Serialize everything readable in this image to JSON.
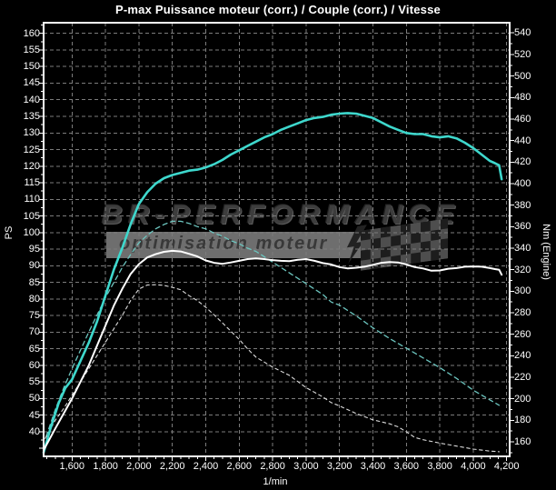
{
  "window": {
    "title": "P-max Puissance moteur (corr.) / Couple (corr.) / Vitesse"
  },
  "watermark": {
    "line1": "BR-PERFORMANCE",
    "line2": "optimisation moteur"
  },
  "colors": {
    "background": "#000000",
    "frame": "#ffffff",
    "grid": "#7c7c7c",
    "text": "#ffffff",
    "accent_cyan": "#3ed8cd",
    "accent_cyan_dim": "#6cc5bf",
    "watermark_text": "#3d3d3d",
    "watermark_bar": "#6e6e6e"
  },
  "chart_data": {
    "type": "line",
    "title": "P-max Puissance moteur (corr.) / Couple (corr.) / Vitesse",
    "grid": {
      "show": true,
      "style": "dashed"
    },
    "legend": "none",
    "x_axis": {
      "label": "1/min",
      "tick_labels": [
        "1,600",
        "1,800",
        "2,000",
        "2,200",
        "2,400",
        "2,600",
        "2,800",
        "3,000",
        "3,200",
        "3,400",
        "3,600",
        "3,800",
        "4,000",
        "4,200"
      ],
      "tick_min": 1600,
      "tick_max": 4200,
      "tick_step": 200,
      "minor_tick_step": 50,
      "axis_min": 1430,
      "axis_max": 4218
    },
    "y_left": {
      "label": "PS",
      "tick_labels": [
        "160",
        "155",
        "150",
        "145",
        "140",
        "135",
        "130",
        "125",
        "120",
        "115",
        "110",
        "105",
        "100",
        "95",
        "90",
        "85",
        "80",
        "75",
        "70",
        "65",
        "60",
        "55",
        "50",
        "45",
        "40"
      ],
      "tick_min": 40,
      "tick_max": 160,
      "tick_step": 5,
      "minor_tick_step": 2.5,
      "axis_min": 32.6,
      "axis_max": 163.2
    },
    "y_right": {
      "label": "Nm (Engine)",
      "tick_labels": [
        "540",
        "520",
        "500",
        "480",
        "460",
        "440",
        "420",
        "400",
        "380",
        "360",
        "340",
        "320",
        "300",
        "280",
        "260",
        "240",
        "220",
        "200",
        "180",
        "160"
      ],
      "tick_min": 160,
      "tick_max": 540,
      "tick_step": 20,
      "minor_tick_step": 10,
      "axis_min": 146.5,
      "axis_max": 549.5
    },
    "series": [
      {
        "name": "cyan-dashed-curve",
        "axis": "right",
        "color": "#6cc5bf",
        "style": "dashed",
        "dash": "5 4",
        "width": 1.3,
        "points": [
          [
            1445,
            165
          ],
          [
            1500,
            190
          ],
          [
            1550,
            210
          ],
          [
            1600,
            228
          ],
          [
            1650,
            245
          ],
          [
            1700,
            262
          ],
          [
            1750,
            278
          ],
          [
            1800,
            294
          ],
          [
            1850,
            308
          ],
          [
            1900,
            322
          ],
          [
            1950,
            334
          ],
          [
            2000,
            345
          ],
          [
            2050,
            352
          ],
          [
            2100,
            358
          ],
          [
            2150,
            362
          ],
          [
            2200,
            365
          ],
          [
            2250,
            365
          ],
          [
            2300,
            363
          ],
          [
            2350,
            360
          ],
          [
            2400,
            358
          ],
          [
            2450,
            354
          ],
          [
            2500,
            351
          ],
          [
            2550,
            347
          ],
          [
            2600,
            344
          ],
          [
            2650,
            340
          ],
          [
            2700,
            337
          ],
          [
            2750,
            332
          ],
          [
            2800,
            327
          ],
          [
            2850,
            322
          ],
          [
            2900,
            317
          ],
          [
            2950,
            312
          ],
          [
            3000,
            307
          ],
          [
            3100,
            297
          ],
          [
            3150,
            290
          ],
          [
            3200,
            287
          ],
          [
            3300,
            277
          ],
          [
            3400,
            266
          ],
          [
            3500,
            256
          ],
          [
            3600,
            247
          ],
          [
            3700,
            238
          ],
          [
            3800,
            229
          ],
          [
            3900,
            219
          ],
          [
            4000,
            208
          ],
          [
            4100,
            199
          ],
          [
            4155,
            194
          ]
        ]
      },
      {
        "name": "white-dashed-curve",
        "axis": "left",
        "color": "#dcdcdc",
        "style": "dashed",
        "dash": "3.5 3.5",
        "width": 1.1,
        "points": [
          [
            1440,
            38
          ],
          [
            1500,
            43.5
          ],
          [
            1550,
            47
          ],
          [
            1600,
            51
          ],
          [
            1650,
            55
          ],
          [
            1700,
            59
          ],
          [
            1750,
            63
          ],
          [
            1800,
            67
          ],
          [
            1850,
            71
          ],
          [
            1900,
            75
          ],
          [
            1950,
            79.5
          ],
          [
            2000,
            83
          ],
          [
            2050,
            84.2
          ],
          [
            2100,
            84.3
          ],
          [
            2150,
            84.1
          ],
          [
            2200,
            83.5
          ],
          [
            2250,
            82.8
          ],
          [
            2300,
            81
          ],
          [
            2350,
            79.5
          ],
          [
            2400,
            77.5
          ],
          [
            2450,
            75.2
          ],
          [
            2500,
            72.8
          ],
          [
            2550,
            70.3
          ],
          [
            2600,
            67.8
          ],
          [
            2650,
            65
          ],
          [
            2700,
            62.5
          ],
          [
            2750,
            61
          ],
          [
            2800,
            59.5
          ],
          [
            2900,
            57
          ],
          [
            3000,
            53.3
          ],
          [
            3100,
            50.5
          ],
          [
            3150,
            48.8
          ],
          [
            3200,
            47.8
          ],
          [
            3300,
            45.5
          ],
          [
            3400,
            43.6
          ],
          [
            3500,
            42.4
          ],
          [
            3550,
            41.5
          ],
          [
            3600,
            40
          ],
          [
            3650,
            38.3
          ],
          [
            3700,
            37.6
          ],
          [
            3800,
            36.6
          ],
          [
            3900,
            35.7
          ],
          [
            4000,
            34.8
          ],
          [
            4100,
            34.2
          ],
          [
            4155,
            34
          ]
        ]
      },
      {
        "name": "cyan-solid-curve",
        "axis": "right",
        "color": "#3ed8cd",
        "style": "solid",
        "dash": "",
        "width": 2.6,
        "points": [
          [
            1430,
            150
          ],
          [
            1470,
            172
          ],
          [
            1520,
            196
          ],
          [
            1560,
            210
          ],
          [
            1600,
            218
          ],
          [
            1650,
            235
          ],
          [
            1700,
            252
          ],
          [
            1750,
            272
          ],
          [
            1800,
            296
          ],
          [
            1850,
            320
          ],
          [
            1900,
            340
          ],
          [
            1950,
            362
          ],
          [
            2000,
            381
          ],
          [
            2050,
            392
          ],
          [
            2100,
            400
          ],
          [
            2150,
            405
          ],
          [
            2200,
            408
          ],
          [
            2250,
            410
          ],
          [
            2300,
            412
          ],
          [
            2350,
            413
          ],
          [
            2400,
            415
          ],
          [
            2450,
            418
          ],
          [
            2500,
            422
          ],
          [
            2550,
            427
          ],
          [
            2600,
            431
          ],
          [
            2650,
            435
          ],
          [
            2700,
            439
          ],
          [
            2750,
            443
          ],
          [
            2800,
            446
          ],
          [
            2850,
            450
          ],
          [
            2900,
            453
          ],
          [
            2950,
            456
          ],
          [
            3000,
            459
          ],
          [
            3050,
            461
          ],
          [
            3100,
            462
          ],
          [
            3150,
            464
          ],
          [
            3200,
            465
          ],
          [
            3250,
            465.5
          ],
          [
            3300,
            465
          ],
          [
            3350,
            463
          ],
          [
            3400,
            461
          ],
          [
            3450,
            457
          ],
          [
            3500,
            453
          ],
          [
            3550,
            450
          ],
          [
            3600,
            447
          ],
          [
            3650,
            446
          ],
          [
            3700,
            446
          ],
          [
            3750,
            444
          ],
          [
            3800,
            443
          ],
          [
            3850,
            444
          ],
          [
            3900,
            442
          ],
          [
            3950,
            438
          ],
          [
            4000,
            433
          ],
          [
            4050,
            427
          ],
          [
            4100,
            421
          ],
          [
            4130,
            419
          ],
          [
            4155,
            417
          ],
          [
            4170,
            404
          ]
        ]
      },
      {
        "name": "white-solid-curve",
        "axis": "left",
        "color": "#ffffff",
        "style": "solid",
        "dash": "",
        "width": 2,
        "points": [
          [
            1430,
            34.5
          ],
          [
            1500,
            41
          ],
          [
            1550,
            45.5
          ],
          [
            1600,
            50
          ],
          [
            1650,
            55
          ],
          [
            1700,
            60
          ],
          [
            1750,
            66
          ],
          [
            1800,
            72
          ],
          [
            1850,
            78
          ],
          [
            1900,
            83
          ],
          [
            1950,
            87.5
          ],
          [
            2000,
            90.5
          ],
          [
            2050,
            92.5
          ],
          [
            2100,
            93.5
          ],
          [
            2150,
            94.2
          ],
          [
            2200,
            94.5
          ],
          [
            2250,
            94.3
          ],
          [
            2300,
            93.6
          ],
          [
            2350,
            92.8
          ],
          [
            2400,
            91.6
          ],
          [
            2450,
            90.9
          ],
          [
            2500,
            90.6
          ],
          [
            2550,
            91
          ],
          [
            2600,
            91.5
          ],
          [
            2650,
            92
          ],
          [
            2700,
            92.2
          ],
          [
            2750,
            92
          ],
          [
            2800,
            91.7
          ],
          [
            2850,
            91.5
          ],
          [
            2900,
            91.4
          ],
          [
            2950,
            91.8
          ],
          [
            3000,
            92
          ],
          [
            3050,
            91.5
          ],
          [
            3100,
            90.8
          ],
          [
            3150,
            90.4
          ],
          [
            3200,
            89.6
          ],
          [
            3250,
            89.2
          ],
          [
            3300,
            89.4
          ],
          [
            3350,
            89.7
          ],
          [
            3400,
            90.3
          ],
          [
            3450,
            90.9
          ],
          [
            3500,
            91.1
          ],
          [
            3550,
            91
          ],
          [
            3600,
            90.4
          ],
          [
            3650,
            89.6
          ],
          [
            3700,
            89.2
          ],
          [
            3750,
            88.5
          ],
          [
            3800,
            88.6
          ],
          [
            3850,
            89.1
          ],
          [
            3900,
            89.3
          ],
          [
            3950,
            89.7
          ],
          [
            4000,
            89.8
          ],
          [
            4050,
            89.7
          ],
          [
            4100,
            89.3
          ],
          [
            4130,
            89
          ],
          [
            4155,
            88.8
          ],
          [
            4170,
            87.3
          ]
        ]
      }
    ]
  }
}
